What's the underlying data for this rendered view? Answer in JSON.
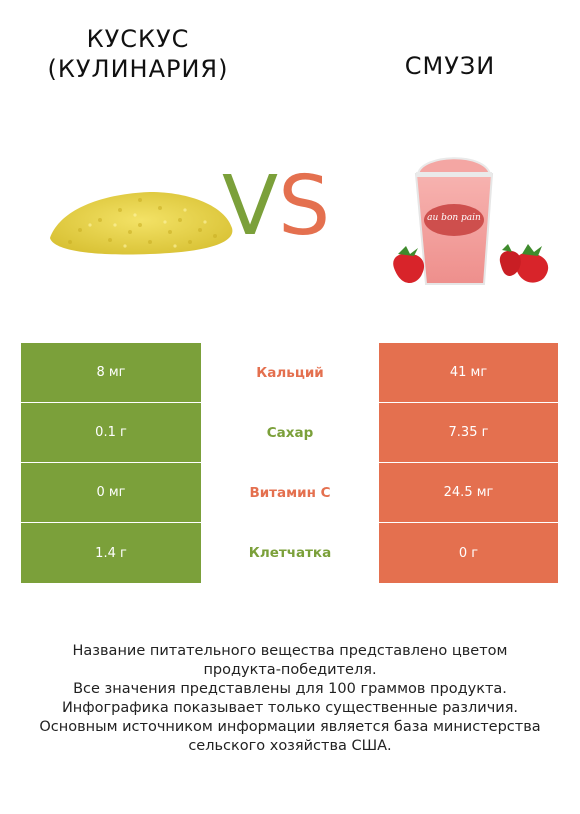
{
  "left_food": {
    "name": "Кускус (кулинария)",
    "color": "#7ba03a"
  },
  "right_food": {
    "name": "Смузи",
    "color": "#e4704f"
  },
  "vs": {
    "v": "V",
    "s": "S"
  },
  "rows": [
    {
      "nutrient": "Кальций",
      "left": "8 мг",
      "right": "41 мг",
      "winner_color": "#e4704f"
    },
    {
      "nutrient": "Сахар",
      "left": "0.1 г",
      "right": "7.35 г",
      "winner_color": "#7ba03a"
    },
    {
      "nutrient": "Витамин C",
      "left": "0 мг",
      "right": "24.5 мг",
      "winner_color": "#e4704f"
    },
    {
      "nutrient": "Клетчатка",
      "left": "1.4 г",
      "right": "0 г",
      "winner_color": "#7ba03a"
    }
  ],
  "footer": {
    "line1": "Название питательного вещества представлено цветом",
    "line2": "продукта-победителя.",
    "line3": "Все значения представлены для 100 граммов продукта.",
    "line4": "Инфографика показывает только существенные различия.",
    "line5": "Основным источником информации является база министерства",
    "line6": "сельского хозяйства США."
  },
  "cup_text": "au bon pain"
}
